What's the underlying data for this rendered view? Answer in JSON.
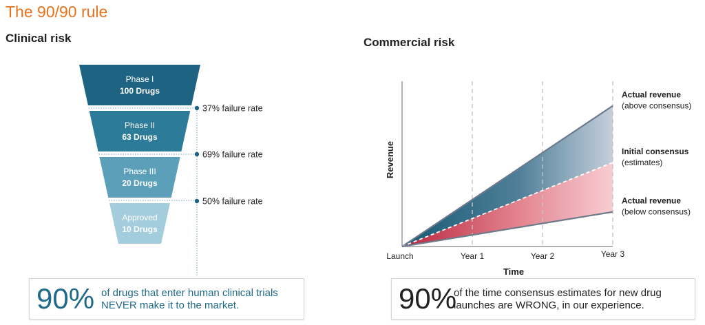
{
  "title": "The 90/90 rule",
  "clinical": {
    "title": "Clinical risk",
    "stages": [
      {
        "name": "Phase I",
        "count": "100 Drugs"
      },
      {
        "name": "Phase II",
        "count": "63 Drugs"
      },
      {
        "name": "Phase III",
        "count": "20 Drugs"
      },
      {
        "name": "Approved",
        "count": "10 Drugs"
      }
    ],
    "failure_rates": [
      "37% failure rate",
      "69% failure rate",
      "50% failure rate"
    ],
    "callout": {
      "pct": "90%",
      "text_line1": "of drugs that enter human clinical trials",
      "text_line2": "NEVER make it to the market."
    }
  },
  "commercial": {
    "title": "Commercial risk",
    "callout": {
      "pct": "90%",
      "text_line1": "of the time consensus estimates for new drug",
      "text_line2": "launches are WRONG, in our experience."
    }
  },
  "chart_data": [
    {
      "type": "funnel",
      "categories": [
        "Phase I",
        "Phase II",
        "Phase III",
        "Approved"
      ],
      "values": [
        100,
        63,
        20,
        10
      ],
      "value_labels": [
        "100 Drugs",
        "63 Drugs",
        "20 Drugs",
        "10 Drugs"
      ],
      "annotations": [
        "37% failure rate",
        "69% failure rate",
        "50% failure rate"
      ],
      "colors": [
        "#1e6482",
        "#2c7b98",
        "#5b9fb8",
        "#a3ccdc"
      ]
    },
    {
      "type": "line",
      "xlabel": "Time",
      "ylabel": "Revenue",
      "categories": [
        "Launch",
        "Year 1",
        "Year 2",
        "Year 3"
      ],
      "x": [
        0,
        1,
        2,
        3
      ],
      "series": [
        {
          "name": "Actual revenue",
          "label_line2": "(above consensus)",
          "values": [
            0,
            0.382,
            0.764,
            1.146
          ],
          "color": "#6d7b8c",
          "style": "solid"
        },
        {
          "name": "Initial consensus",
          "label_line2": "(estimates)",
          "values": [
            0,
            0.228,
            0.456,
            0.684
          ],
          "color": "#888888",
          "style": "dashed"
        },
        {
          "name": "Actual revenue",
          "label_line2": "(below consensus)",
          "values": [
            0,
            0.094,
            0.188,
            0.282
          ],
          "color": "#6d7b8c",
          "style": "solid"
        }
      ],
      "ylim": [
        0,
        1.2
      ],
      "grid": "vertical dashed at Year 1, Year 2, Year 3",
      "fill_colors": {
        "above": "#1c5e78",
        "below": "#c8304a"
      }
    }
  ]
}
